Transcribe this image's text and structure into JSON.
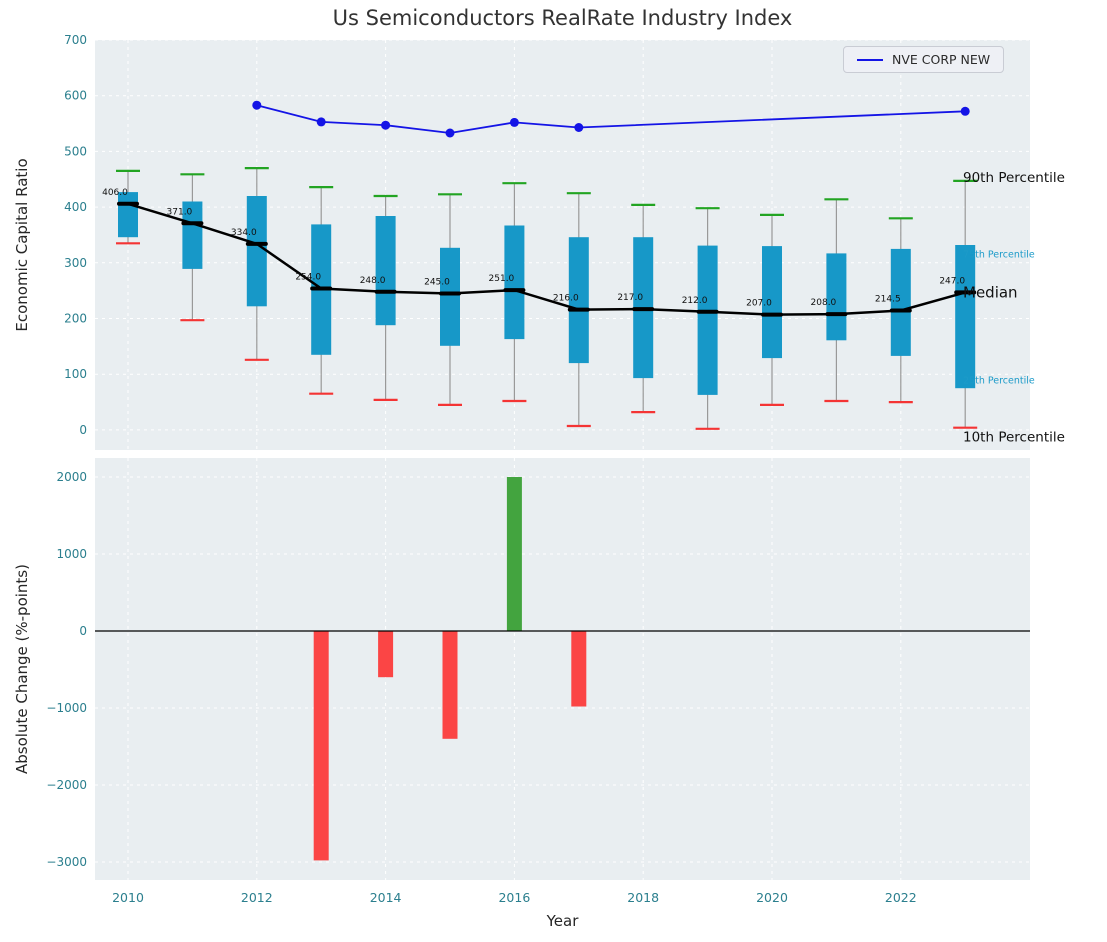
{
  "colors": {
    "plot_bg": "#e9eef1",
    "grid": "#ffffff",
    "box_fill": "#1798c8",
    "whisker": "#999999",
    "cap_top": "#22a422",
    "cap_bottom": "#f43434",
    "median": "#000000",
    "nve_line": "#1414e6",
    "positive_bar": "#43a43f",
    "negative_bar": "#fb4545",
    "tick_label": "#2b7f8e",
    "title": "#333333",
    "axis_label": "#262626"
  },
  "chart_data": [
    {
      "type": "boxplot",
      "title": "Us Semiconductors RealRate Industry Index",
      "ylabel": "Economic Capital Ratio",
      "xlabel": "",
      "ylim": [
        -36,
        700
      ],
      "yticks": [
        0,
        100,
        200,
        300,
        400,
        500,
        600,
        700
      ],
      "grid": true,
      "legend_position": "upper right",
      "years": [
        2010,
        2011,
        2012,
        2013,
        2014,
        2015,
        2016,
        2017,
        2018,
        2019,
        2020,
        2021,
        2022,
        2023
      ],
      "p90": [
        465,
        459,
        470,
        436,
        420,
        423,
        443,
        425,
        404,
        398,
        386,
        414,
        380,
        447
      ],
      "p75": [
        427,
        410,
        420,
        369,
        384,
        327,
        367,
        346,
        346,
        331,
        330,
        317,
        325,
        332
      ],
      "median": [
        406,
        371,
        334,
        254,
        248,
        245,
        251,
        216,
        217,
        212,
        207,
        208,
        214.5,
        247
      ],
      "p25": [
        346,
        289,
        222,
        135,
        188,
        151,
        163,
        120,
        93,
        63,
        129,
        161,
        133,
        75
      ],
      "p10": [
        335,
        197,
        126,
        65,
        54,
        45,
        52,
        7,
        32,
        2,
        45,
        52,
        50,
        4
      ],
      "median_labels": [
        "406.0",
        "371.0",
        "334.0",
        "254.0",
        "248.0",
        "245.0",
        "251.0",
        "216.0",
        "217.0",
        "212.0",
        "207.0",
        "208.0",
        "214.5",
        "247.0"
      ],
      "line_series": {
        "name": "NVE CORP NEW",
        "x": [
          2012,
          2013,
          2014,
          2015,
          2016,
          2017,
          2023
        ],
        "y": [
          583,
          553,
          547,
          533,
          552,
          543,
          572
        ]
      },
      "annotations": [
        {
          "text": "90th Percentile",
          "value": 452,
          "color": "#111111",
          "size": 13.5
        },
        {
          "text": "75th Percentile",
          "value": 314,
          "color": "#1d9bc9",
          "size": 9.5
        },
        {
          "text": "Median",
          "value": 246,
          "color": "#111111",
          "size": 15
        },
        {
          "text": "25th Percentile",
          "value": 88,
          "color": "#1d9bc9",
          "size": 9.5
        },
        {
          "text": "10th Percentile",
          "value": -14,
          "color": "#111111",
          "size": 13.5
        }
      ]
    },
    {
      "type": "bar",
      "title": "",
      "ylabel": "Absolute Change (%-points)",
      "xlabel": "Year",
      "ylim": [
        -3234,
        2247
      ],
      "yticks": [
        -3000,
        -2000,
        -1000,
        0,
        1000,
        2000
      ],
      "xtick_years": [
        2010,
        2012,
        2014,
        2016,
        2018,
        2020,
        2022
      ],
      "grid": true,
      "bars": {
        "years": [
          2013,
          2014,
          2015,
          2016,
          2017
        ],
        "values": [
          -2980,
          -600,
          -1400,
          2000,
          -980
        ]
      }
    }
  ]
}
